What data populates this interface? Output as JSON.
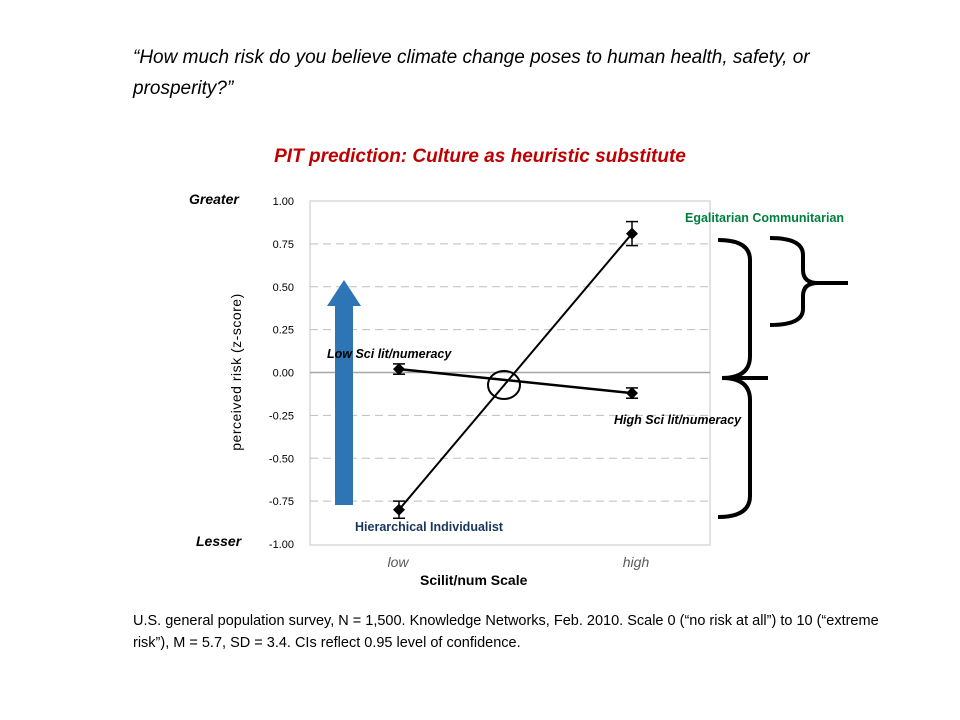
{
  "question": "“How much risk do you believe climate change poses to human health, safety, or prosperity?”",
  "subtitle": "PIT prediction: Culture as heuristic substitute",
  "greater_label": "Greater",
  "lesser_label": "Lesser",
  "footnote": "U.S. general population survey, N = 1,500. Knowledge Networks, Feb. 2010. Scale 0 (“no risk at all”) to 10 (“extreme risk”), M = 5.7, SD = 3.4. CIs reflect 0.95 level of confidence.",
  "colors": {
    "title": "#c00000",
    "egal": "#00803c",
    "hier": "#17365d",
    "arrow": "#2e75b6"
  },
  "chart_data": {
    "type": "line",
    "ylabel": "perceived risk (z-score)",
    "xlabel": "Scilit/num Scale",
    "ylim": [
      -1.0,
      1.0
    ],
    "yticks": [
      "1.00",
      "0.75",
      "0.50",
      "0.25",
      "0.00",
      "-0.25",
      "-0.50",
      "-0.75",
      "-1.00"
    ],
    "categories": [
      "low",
      "high"
    ],
    "grid": true,
    "series": [
      {
        "key": "culture",
        "values": [
          -0.8,
          0.81
        ],
        "ci": [
          0.05,
          0.07
        ]
      },
      {
        "key": "scilit",
        "values": [
          0.02,
          -0.12
        ],
        "ci": [
          0.03,
          0.03
        ]
      }
    ],
    "annotations": {
      "egalitarian": "Egalitarian Communitarian",
      "hierarchical": "Hierarchical Individualist",
      "low_sci": "Low Sci lit/numeracy",
      "high_sci": "High Sci lit/numeracy"
    }
  }
}
